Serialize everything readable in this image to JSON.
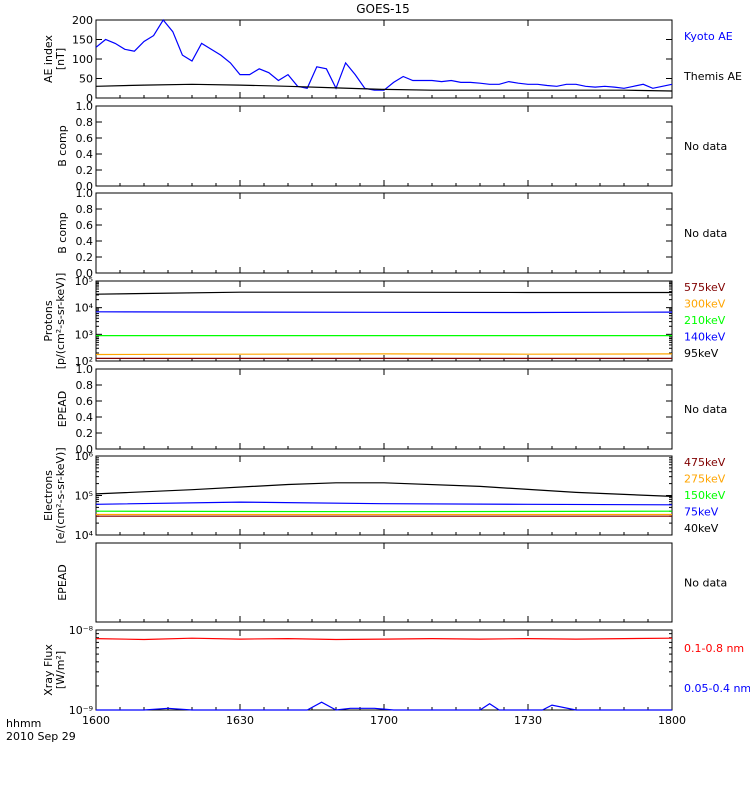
{
  "title": "GOES-15",
  "footer": {
    "time_label": "hhmm",
    "date_label": "2010 Sep 29"
  },
  "x_ticks": [
    {
      "t": 0,
      "label": "1600"
    },
    {
      "t": 30,
      "label": "1630"
    },
    {
      "t": 60,
      "label": "1700"
    },
    {
      "t": 90,
      "label": "1730"
    },
    {
      "t": 120,
      "label": "1800"
    }
  ],
  "colors": {
    "black": "#000000",
    "blue": "#0000ff",
    "red": "#ff0000",
    "green": "#00ff00",
    "orange": "#ffa500",
    "darkred": "#800000",
    "purple": "#8000ff",
    "axis": "#000000"
  },
  "chart_data": [
    {
      "type": "line",
      "panel": "ae",
      "ylabel": [
        "AE index",
        "[nT]"
      ],
      "ylim": [
        0,
        200
      ],
      "yticks": [
        {
          "v": 0,
          "label": "0"
        },
        {
          "v": 50,
          "label": "50"
        },
        {
          "v": 100,
          "label": "100"
        },
        {
          "v": 150,
          "label": "150"
        },
        {
          "v": 200,
          "label": "200"
        }
      ],
      "log": false,
      "series": [
        {
          "name": "Kyoto AE",
          "color": "blue",
          "x": [
            0,
            2,
            4,
            6,
            8,
            10,
            12,
            14,
            16,
            18,
            20,
            22,
            24,
            26,
            28,
            30,
            32,
            34,
            36,
            38,
            40,
            42,
            44,
            46,
            48,
            50,
            52,
            54,
            56,
            58,
            60,
            62,
            64,
            66,
            68,
            70,
            72,
            74,
            76,
            78,
            80,
            82,
            84,
            86,
            88,
            90,
            92,
            94,
            96,
            98,
            100,
            102,
            104,
            106,
            108,
            110,
            112,
            114,
            116,
            118,
            120
          ],
          "y": [
            130,
            150,
            140,
            125,
            120,
            145,
            160,
            200,
            170,
            110,
            95,
            140,
            125,
            110,
            90,
            60,
            60,
            75,
            65,
            45,
            60,
            30,
            25,
            80,
            75,
            25,
            90,
            60,
            25,
            20,
            20,
            40,
            55,
            45,
            45,
            45,
            42,
            45,
            40,
            40,
            38,
            35,
            35,
            42,
            38,
            35,
            35,
            32,
            30,
            35,
            35,
            30,
            28,
            30,
            28,
            25,
            30,
            35,
            25,
            30,
            35
          ]
        },
        {
          "name": "Themis AE",
          "color": "black",
          "x": [
            0,
            10,
            20,
            30,
            40,
            50,
            60,
            70,
            80,
            90,
            100,
            110,
            120
          ],
          "y": [
            30,
            33,
            35,
            33,
            30,
            26,
            22,
            20,
            20,
            20,
            20,
            20,
            18
          ]
        }
      ]
    },
    {
      "type": "line",
      "panel": "b1",
      "ylabel": [
        "B comp"
      ],
      "ylim": [
        0,
        1
      ],
      "yticks": [
        {
          "v": 0,
          "label": "0.0"
        },
        {
          "v": 0.2,
          "label": "0.2"
        },
        {
          "v": 0.4,
          "label": "0.4"
        },
        {
          "v": 0.6,
          "label": "0.6"
        },
        {
          "v": 0.8,
          "label": "0.8"
        },
        {
          "v": 1,
          "label": "1.0"
        }
      ],
      "log": false,
      "series": [],
      "status": "No data"
    },
    {
      "type": "line",
      "panel": "b2",
      "ylabel": [
        "B comp"
      ],
      "ylim": [
        0,
        1
      ],
      "yticks": [
        {
          "v": 0,
          "label": "0.0"
        },
        {
          "v": 0.2,
          "label": "0.2"
        },
        {
          "v": 0.4,
          "label": "0.4"
        },
        {
          "v": 0.6,
          "label": "0.6"
        },
        {
          "v": 0.8,
          "label": "0.8"
        },
        {
          "v": 1,
          "label": "1.0"
        }
      ],
      "log": false,
      "series": [],
      "status": "No data"
    },
    {
      "type": "line",
      "panel": "protons",
      "ylabel": [
        "Protons",
        "[p/(cm²-s-sr-keV)]"
      ],
      "ylim": [
        100,
        100000
      ],
      "yticks": [
        {
          "v": 100,
          "label": "10²"
        },
        {
          "v": 1000,
          "label": "10³"
        },
        {
          "v": 10000,
          "label": "10⁴"
        },
        {
          "v": 100000,
          "label": "10⁵"
        }
      ],
      "log": true,
      "series": [
        {
          "name": "575keV",
          "color": "darkred",
          "x": [
            0,
            120
          ],
          "y": [
            125,
            125
          ]
        },
        {
          "name": "300keV",
          "color": "orange",
          "x": [
            0,
            30,
            60,
            90,
            120
          ],
          "y": [
            175,
            180,
            185,
            180,
            185
          ]
        },
        {
          "name": "210keV",
          "color": "green",
          "x": [
            0,
            120
          ],
          "y": [
            900,
            900
          ]
        },
        {
          "name": "140keV",
          "color": "blue",
          "x": [
            0,
            30,
            60,
            90,
            120
          ],
          "y": [
            7000,
            6800,
            6700,
            6600,
            6800
          ]
        },
        {
          "name": "95keV",
          "color": "black",
          "x": [
            0,
            10,
            30,
            60,
            90,
            120
          ],
          "y": [
            32000,
            34000,
            38000,
            38000,
            37000,
            37000
          ]
        }
      ]
    },
    {
      "type": "line",
      "panel": "epead1",
      "ylabel": [
        "EPEAD"
      ],
      "ylim": [
        0,
        1
      ],
      "yticks": [
        {
          "v": 0,
          "label": "0.0"
        },
        {
          "v": 0.2,
          "label": "0.2"
        },
        {
          "v": 0.4,
          "label": "0.4"
        },
        {
          "v": 0.6,
          "label": "0.6"
        },
        {
          "v": 0.8,
          "label": "0.8"
        },
        {
          "v": 1,
          "label": "1.0"
        }
      ],
      "log": false,
      "series": [],
      "status": "No data"
    },
    {
      "type": "line",
      "panel": "electrons",
      "ylabel": [
        "Electrons",
        "[e/(cm²-s-sr-keV)]"
      ],
      "ylim": [
        10000,
        1000000
      ],
      "yticks": [
        {
          "v": 10000,
          "label": "10⁴"
        },
        {
          "v": 100000,
          "label": "10⁵"
        },
        {
          "v": 1000000,
          "label": "10⁶"
        }
      ],
      "log": true,
      "series": [
        {
          "name": "475keV",
          "color": "darkred",
          "x": [
            0,
            120
          ],
          "y": [
            30000,
            30000
          ]
        },
        {
          "name": "275keV",
          "color": "orange",
          "x": [
            0,
            120
          ],
          "y": [
            33000,
            33000
          ]
        },
        {
          "name": "150keV",
          "color": "green",
          "x": [
            0,
            60,
            120
          ],
          "y": [
            40000,
            39000,
            40000
          ]
        },
        {
          "name": "75keV",
          "color": "blue",
          "x": [
            0,
            30,
            60,
            90,
            120
          ],
          "y": [
            60000,
            68000,
            62000,
            60000,
            58000
          ]
        },
        {
          "name": "40keV",
          "color": "black",
          "x": [
            0,
            20,
            40,
            50,
            60,
            80,
            100,
            120
          ],
          "y": [
            110000,
            140000,
            190000,
            210000,
            210000,
            170000,
            120000,
            95000
          ]
        }
      ]
    },
    {
      "type": "line",
      "panel": "epead2",
      "ylabel": [
        "EPEAD"
      ],
      "ylim": [
        0,
        1
      ],
      "yticks": [],
      "log": false,
      "series": [],
      "status": "No data"
    },
    {
      "type": "line",
      "panel": "xray",
      "ylabel": [
        "Xray Flux",
        "[W/m²]"
      ],
      "ylim": [
        1e-09,
        1e-08
      ],
      "yticks": [
        {
          "v": 1e-09,
          "label": "10⁻⁹"
        },
        {
          "v": 1e-08,
          "label": "10⁻⁸"
        }
      ],
      "log": true,
      "series": [
        {
          "name": "0.1-0.8 nm",
          "color": "red",
          "x": [
            0,
            10,
            20,
            30,
            40,
            50,
            60,
            70,
            80,
            90,
            100,
            110,
            120
          ],
          "y": [
            7.8e-09,
            7.6e-09,
            7.9e-09,
            7.7e-09,
            7.8e-09,
            7.6e-09,
            7.7e-09,
            7.8e-09,
            7.7e-09,
            7.8e-09,
            7.7e-09,
            7.8e-09,
            7.9e-09
          ]
        },
        {
          "name": "0.05-0.4 nm",
          "color": "blue",
          "x": [
            0,
            10,
            15,
            20,
            30,
            44,
            47,
            50,
            53,
            58,
            62,
            80,
            82,
            84,
            93,
            95,
            100,
            110,
            120
          ],
          "y": [
            1e-09,
            1e-09,
            1.05e-09,
            1e-09,
            1e-09,
            1e-09,
            1.25e-09,
            1e-09,
            1.05e-09,
            1.05e-09,
            1e-09,
            1e-09,
            1.2e-09,
            1e-09,
            1e-09,
            1.15e-09,
            1e-09,
            1e-09,
            1e-09
          ]
        }
      ]
    }
  ]
}
